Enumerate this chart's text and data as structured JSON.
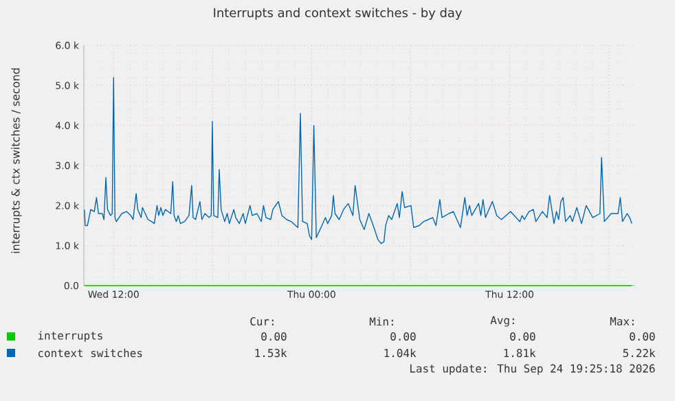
{
  "chart_data": {
    "type": "line",
    "title": "Interrupts and context switches - by day",
    "ylabel": "interrupts & ctx switches / second",
    "xlim": [
      "2026-09-23T10:12",
      "2026-09-24T19:36"
    ],
    "ylim": [
      0,
      6000
    ],
    "xticks": [
      {
        "value": "2026-09-23T12:00",
        "label": "Wed 12:00"
      },
      {
        "value": "2026-09-23T18:00",
        "label": null
      },
      {
        "value": "2026-09-24T00:00",
        "label": "Thu 00:00"
      },
      {
        "value": "2026-09-24T06:00",
        "label": null
      },
      {
        "value": "2026-09-24T12:00",
        "label": "Thu 12:00"
      },
      {
        "value": "2026-09-24T18:00",
        "label": null
      }
    ],
    "yticks": [
      {
        "value": 0,
        "label": "0.0"
      },
      {
        "value": 1000,
        "label": "1.0 k"
      },
      {
        "value": 2000,
        "label": "2.0 k"
      },
      {
        "value": 3000,
        "label": "3.0 k"
      },
      {
        "value": 4000,
        "label": "4.0 k"
      },
      {
        "value": 5000,
        "label": "5.0 k"
      },
      {
        "value": 6000,
        "label": "6.0 k"
      }
    ],
    "grid": true,
    "legend": "bottom",
    "series": [
      {
        "name": "interrupts",
        "color": "#00cc00",
        "x": [
          "2026-09-23T10:14",
          "2026-09-24T19:24"
        ],
        "values": [
          0,
          0
        ]
      },
      {
        "name": "context switches",
        "color": "#0066b3",
        "x": [
          "2026-09-23T10:14",
          "2026-09-23T10:17",
          "2026-09-23T10:25",
          "2026-09-23T10:37",
          "2026-09-23T10:50",
          "2026-09-23T10:58",
          "2026-09-23T11:05",
          "2026-09-23T11:19",
          "2026-09-23T11:25",
          "2026-09-23T11:32",
          "2026-09-23T11:38",
          "2026-09-23T11:49",
          "2026-09-23T11:55",
          "2026-09-23T12:00",
          "2026-09-23T12:05",
          "2026-09-23T12:10",
          "2026-09-23T12:30",
          "2026-09-23T12:47",
          "2026-09-23T13:03",
          "2026-09-23T13:11",
          "2026-09-23T13:22",
          "2026-09-23T13:28",
          "2026-09-23T13:40",
          "2026-09-23T13:45",
          "2026-09-23T14:05",
          "2026-09-23T14:18",
          "2026-09-23T14:28",
          "2026-09-23T14:38",
          "2026-09-23T14:44",
          "2026-09-23T14:52",
          "2026-09-23T14:59",
          "2026-09-23T15:08",
          "2026-09-23T15:28",
          "2026-09-23T15:35",
          "2026-09-23T15:40",
          "2026-09-23T15:48",
          "2026-09-23T15:55",
          "2026-09-23T16:03",
          "2026-09-23T16:18",
          "2026-09-23T16:34",
          "2026-09-23T16:44",
          "2026-09-23T16:49",
          "2026-09-23T16:58",
          "2026-09-23T17:14",
          "2026-09-23T17:21",
          "2026-09-23T17:32",
          "2026-09-23T17:47",
          "2026-09-23T17:55",
          "2026-09-23T17:59",
          "2026-09-23T18:04",
          "2026-09-23T18:19",
          "2026-09-23T18:24",
          "2026-09-23T18:31",
          "2026-09-23T18:44",
          "2026-09-23T18:53",
          "2026-09-23T19:01",
          "2026-09-23T19:17",
          "2026-09-23T19:24",
          "2026-09-23T19:37",
          "2026-09-23T19:51",
          "2026-09-23T19:59",
          "2026-09-23T20:16",
          "2026-09-23T20:24",
          "2026-09-23T20:41",
          "2026-09-23T20:57",
          "2026-09-23T21:05",
          "2026-09-23T21:14",
          "2026-09-23T21:31",
          "2026-09-23T21:39",
          "2026-09-23T21:59",
          "2026-09-23T22:12",
          "2026-09-23T22:29",
          "2026-09-23T22:46",
          "2026-09-23T23:10",
          "2026-09-23T23:19",
          "2026-09-23T23:27",
          "2026-09-23T23:44",
          "2026-09-23T23:52",
          "2026-09-24T00:00",
          "2026-09-24T00:08",
          "2026-09-24T00:17",
          "2026-09-24T00:34",
          "2026-09-24T00:50",
          "2026-09-24T00:58",
          "2026-09-24T01:13",
          "2026-09-24T01:19",
          "2026-09-24T01:25",
          "2026-09-24T01:40",
          "2026-09-24T01:56",
          "2026-09-24T02:13",
          "2026-09-24T02:30",
          "2026-09-24T02:38",
          "2026-09-24T02:55",
          "2026-09-24T03:11",
          "2026-09-24T03:28",
          "2026-09-24T03:44",
          "2026-09-24T04:01",
          "2026-09-24T04:13",
          "2026-09-24T04:23",
          "2026-09-24T04:29",
          "2026-09-24T04:40",
          "2026-09-24T04:51",
          "2026-09-24T05:11",
          "2026-09-24T05:19",
          "2026-09-24T05:29",
          "2026-09-24T05:38",
          "2026-09-24T06:01",
          "2026-09-24T06:11",
          "2026-09-24T06:31",
          "2026-09-24T06:47",
          "2026-09-24T07:04",
          "2026-09-24T07:20",
          "2026-09-24T07:32",
          "2026-09-24T07:46",
          "2026-09-24T07:54",
          "2026-09-24T08:19",
          "2026-09-24T08:35",
          "2026-09-24T09:01",
          "2026-09-24T09:17",
          "2026-09-24T09:25",
          "2026-09-24T09:34",
          "2026-09-24T09:42",
          "2026-09-24T10:07",
          "2026-09-24T10:15",
          "2026-09-24T10:23",
          "2026-09-24T10:32",
          "2026-09-24T10:57",
          "2026-09-24T11:13",
          "2026-09-24T11:30",
          "2026-09-24T12:03",
          "2026-09-24T12:37",
          "2026-09-24T12:45",
          "2026-09-24T12:53",
          "2026-09-24T13:10",
          "2026-09-24T13:26",
          "2026-09-24T13:35",
          "2026-09-24T13:59",
          "2026-09-24T14:16",
          "2026-09-24T14:25",
          "2026-09-24T14:41",
          "2026-09-24T14:50",
          "2026-09-24T14:58",
          "2026-09-24T15:06",
          "2026-09-24T15:14",
          "2026-09-24T15:23",
          "2026-09-24T15:40",
          "2026-09-24T15:48",
          "2026-09-24T16:04",
          "2026-09-24T16:21",
          "2026-09-24T16:38",
          "2026-09-24T17:02",
          "2026-09-24T17:28",
          "2026-09-24T17:34",
          "2026-09-24T17:44",
          "2026-09-24T18:09",
          "2026-09-24T18:34",
          "2026-09-24T18:42",
          "2026-09-24T18:50",
          "2026-09-24T19:07",
          "2026-09-24T19:16",
          "2026-09-24T19:24"
        ],
        "values": [
          1900,
          1500,
          1500,
          1900,
          1850,
          2200,
          1800,
          1800,
          1650,
          2700,
          1900,
          1750,
          1800,
          5200,
          1700,
          1600,
          1800,
          1850,
          1750,
          1650,
          2300,
          1900,
          1700,
          1950,
          1650,
          1600,
          1550,
          2000,
          1750,
          1950,
          1750,
          1900,
          1800,
          2600,
          1750,
          1600,
          1750,
          1550,
          1600,
          1750,
          2500,
          1700,
          1650,
          2100,
          1650,
          1800,
          1700,
          1750,
          4100,
          1750,
          1700,
          2900,
          1900,
          1600,
          1800,
          1550,
          1900,
          1700,
          1550,
          1800,
          1550,
          2000,
          1750,
          1800,
          1600,
          2000,
          1700,
          1650,
          1900,
          2100,
          1750,
          1650,
          1600,
          1450,
          4300,
          1600,
          1550,
          1250,
          1150,
          4000,
          1200,
          1450,
          1700,
          1550,
          1750,
          2250,
          1800,
          1650,
          1900,
          2050,
          1750,
          2500,
          1650,
          1400,
          1800,
          1500,
          1150,
          1050,
          1100,
          1500,
          1750,
          1650,
          2050,
          1700,
          2350,
          1950,
          2000,
          1450,
          1500,
          1600,
          1650,
          1700,
          1500,
          2150,
          1700,
          1800,
          1850,
          1450,
          2200,
          1750,
          2000,
          1750,
          2050,
          1750,
          2150,
          1700,
          2100,
          1750,
          1650,
          1850,
          1600,
          1750,
          1650,
          1850,
          1900,
          1600,
          1850,
          1700,
          2250,
          1550,
          1850,
          1650,
          2100,
          2200,
          1600,
          1750,
          1600,
          1950,
          1550,
          2000,
          1700,
          1800,
          3200,
          1600,
          1800,
          1800,
          2200,
          1600,
          1800,
          1700,
          1550
        ]
      }
    ],
    "annotations": [
      "Cur:",
      "Min:",
      "Avg:",
      "Max:",
      "0.00",
      "0.00",
      "0.00",
      "0.00",
      "1.53k",
      "1.04k",
      "1.81k",
      "5.22k",
      "Last update: Thu Sep 24 19:25:18 2026"
    ]
  }
}
